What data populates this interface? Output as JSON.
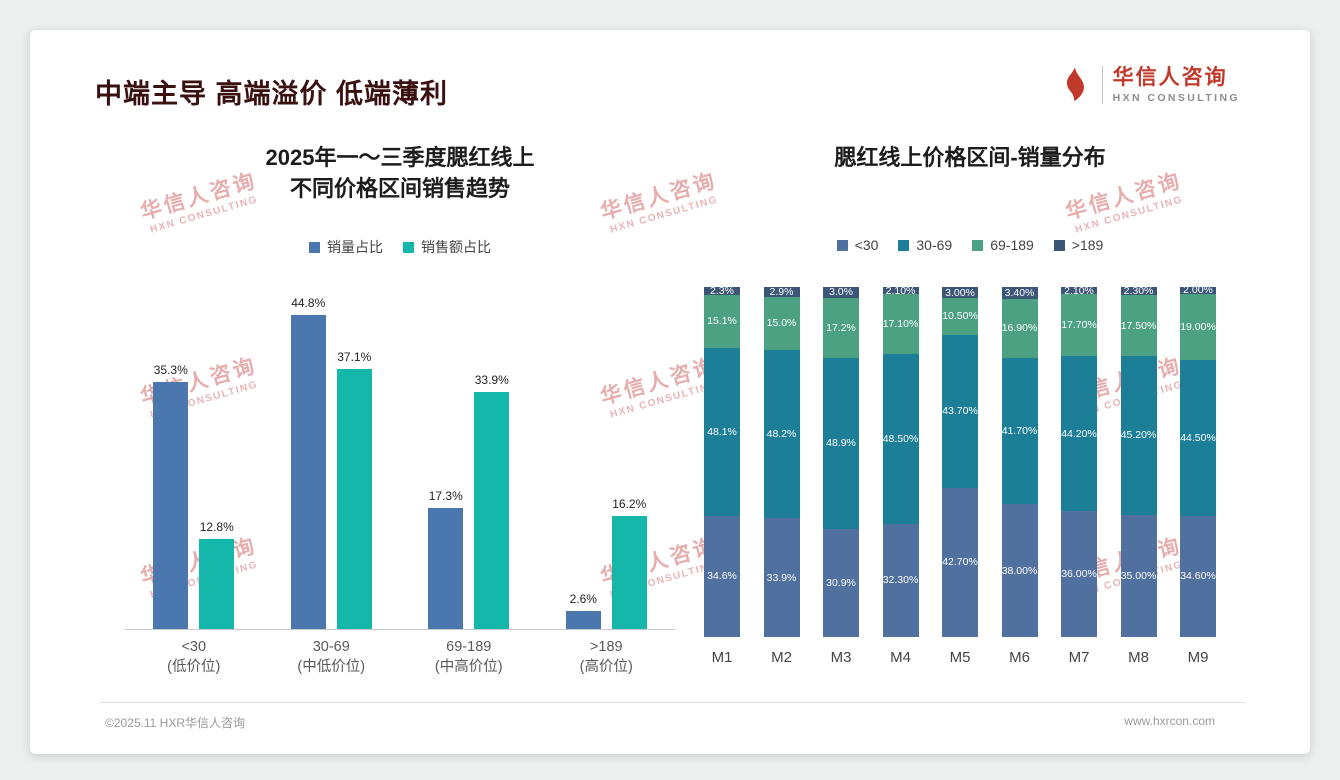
{
  "slide": {
    "title": "中端主导 高端溢价 低端薄利",
    "logo": {
      "name": "华信人咨询",
      "tagline": "HXN CONSULTING"
    },
    "footer": {
      "copyright": "©2025.11 HXR华信人咨询",
      "website": "www.hxrcon.com"
    },
    "watermark": {
      "line1": "华信人咨询",
      "line2": "HXN CONSULTING"
    }
  },
  "chart_data": [
    {
      "type": "bar",
      "title": "2025年一～三季度腮红线上\n不同价格区间销售趋势",
      "categories": [
        "<30\n(低价位)",
        "30-69\n(中低价位)",
        "69-189\n(中高价位)",
        ">189\n(高价位)"
      ],
      "ylim": [
        0,
        50
      ],
      "grid": false,
      "legend_position": "top",
      "value_suffix": "%",
      "series": [
        {
          "name": "销量占比",
          "color": "#4a77ad",
          "values": [
            35.3,
            44.8,
            17.3,
            2.6
          ],
          "labels": [
            "35.3%",
            "44.8%",
            "17.3%",
            "2.6%"
          ]
        },
        {
          "name": "销售额占比",
          "color": "#16b7ab",
          "values": [
            12.8,
            37.1,
            33.9,
            16.2
          ],
          "labels": [
            "12.8%",
            "37.1%",
            "33.9%",
            "16.2%"
          ]
        }
      ]
    },
    {
      "type": "stacked-bar",
      "title": "腮红线上价格区间-销量分布",
      "categories": [
        "M1",
        "M2",
        "M3",
        "M4",
        "M5",
        "M6",
        "M7",
        "M8",
        "M9"
      ],
      "ylim": [
        0,
        100
      ],
      "grid": false,
      "legend_position": "top",
      "value_suffix": "%",
      "series": [
        {
          "name": "<30",
          "color": "#50709f",
          "values": [
            34.6,
            33.9,
            30.9,
            32.3,
            42.7,
            38.0,
            36.0,
            35.0,
            34.6
          ],
          "labels": [
            "34.6%",
            "33.9%",
            "30.9%",
            "32.30%",
            "42.70%",
            "38.00%",
            "36.00%",
            "35.00%",
            "34.60%"
          ]
        },
        {
          "name": "30-69",
          "color": "#1d7e97",
          "values": [
            48.1,
            48.2,
            48.9,
            48.5,
            43.7,
            41.7,
            44.2,
            45.2,
            44.5
          ],
          "labels": [
            "48.1%",
            "48.2%",
            "48.9%",
            "48.50%",
            "43.70%",
            "41.70%",
            "44.20%",
            "45.20%",
            "44.50%"
          ]
        },
        {
          "name": "69-189",
          "color": "#4ba181",
          "values": [
            15.1,
            15.0,
            17.2,
            17.1,
            10.5,
            16.9,
            17.7,
            17.5,
            19.0
          ],
          "labels": [
            "15.1%",
            "15.0%",
            "17.2%",
            "17.10%",
            "10.50%",
            "16.90%",
            "17.70%",
            "17.50%",
            "19.00%"
          ]
        },
        {
          "name": ">189",
          "color": "#3c5677",
          "values": [
            2.3,
            2.9,
            3.0,
            2.1,
            3.0,
            3.4,
            2.1,
            2.3,
            2.0
          ],
          "labels": [
            "2.3%",
            "2.9%",
            "3.0%",
            "2.10%",
            "3.00%",
            "3.40%",
            "2.10%",
            "2.30%",
            "2.00%"
          ]
        }
      ]
    }
  ]
}
